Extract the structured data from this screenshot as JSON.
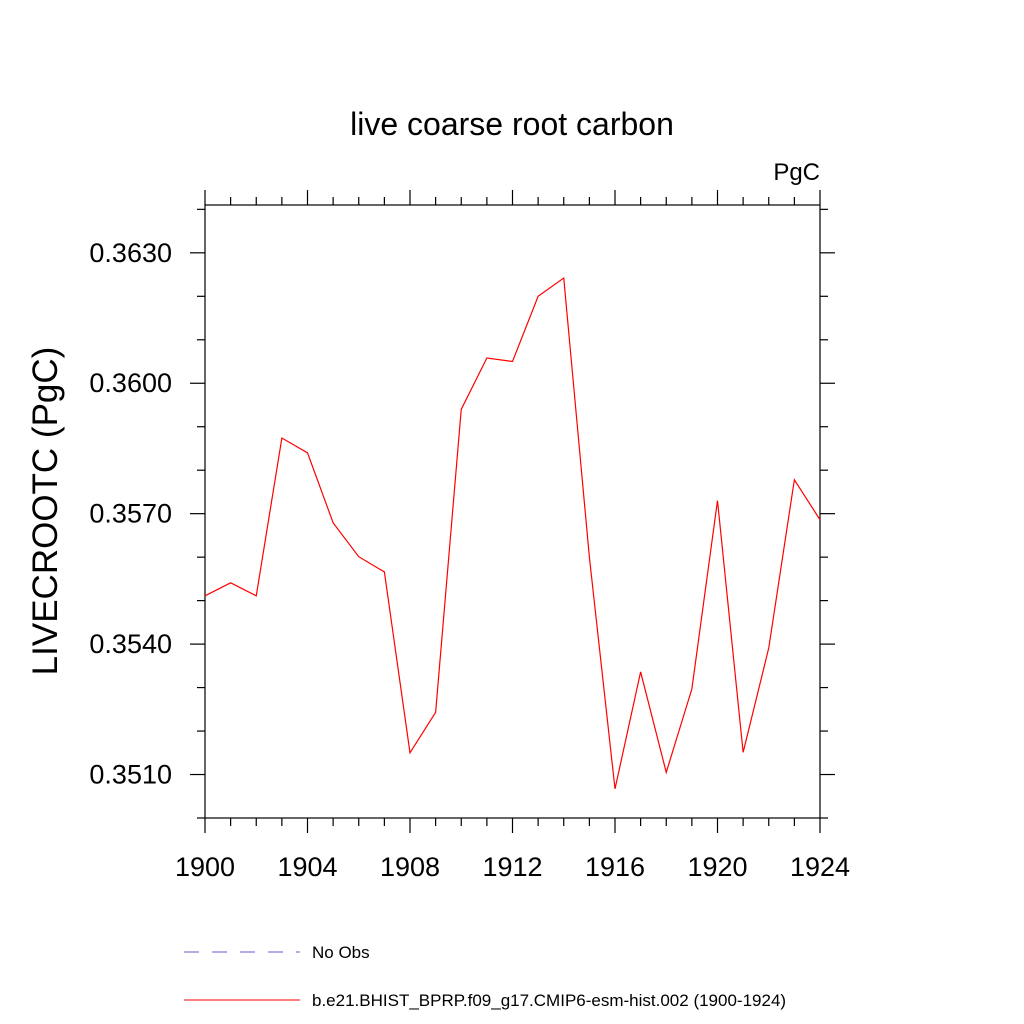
{
  "chart_data": {
    "type": "line",
    "title": "live coarse root carbon",
    "units_label": "PgC",
    "xlabel": "",
    "ylabel": "LIVECROOTC  (PgC)",
    "xlim": [
      1900,
      1924
    ],
    "ylim": [
      0.35,
      0.3641
    ],
    "x_major_ticks": [
      1900,
      1904,
      1908,
      1912,
      1916,
      1920,
      1924
    ],
    "x_tick_labels": [
      "1900",
      "1904",
      "1908",
      "1912",
      "1916",
      "1920",
      "1924"
    ],
    "x_minor_step": 1,
    "y_major_ticks": [
      0.351,
      0.354,
      0.357,
      0.36,
      0.363
    ],
    "y_tick_labels": [
      "0.3510",
      "0.3540",
      "0.3570",
      "0.3600",
      "0.3630"
    ],
    "y_minor_step": 0.001,
    "grid": false,
    "legend_position": "bottom",
    "series": [
      {
        "name": "b.e21.BHIST_BPRP.f09_g17.CMIP6-esm-hist.002 (1900-1924)",
        "color": "#ff0000",
        "style": "solid",
        "x": [
          1900,
          1901,
          1902,
          1903,
          1904,
          1905,
          1906,
          1907,
          1908,
          1909,
          1910,
          1911,
          1912,
          1913,
          1914,
          1915,
          1916,
          1917,
          1918,
          1919,
          1920,
          1921,
          1922,
          1923,
          1924
        ],
        "values": [
          0.35511,
          0.35541,
          0.35511,
          0.35874,
          0.3584,
          0.35679,
          0.35601,
          0.35566,
          0.3515,
          0.35243,
          0.3594,
          0.36058,
          0.3605,
          0.362,
          0.36242,
          0.356,
          0.35067,
          0.35336,
          0.35105,
          0.35297,
          0.3573,
          0.35151,
          0.35391,
          0.35778,
          0.35686
        ]
      },
      {
        "name": "No Obs",
        "color": "#6a5acd",
        "style": "dashed",
        "x": [],
        "values": []
      }
    ]
  }
}
